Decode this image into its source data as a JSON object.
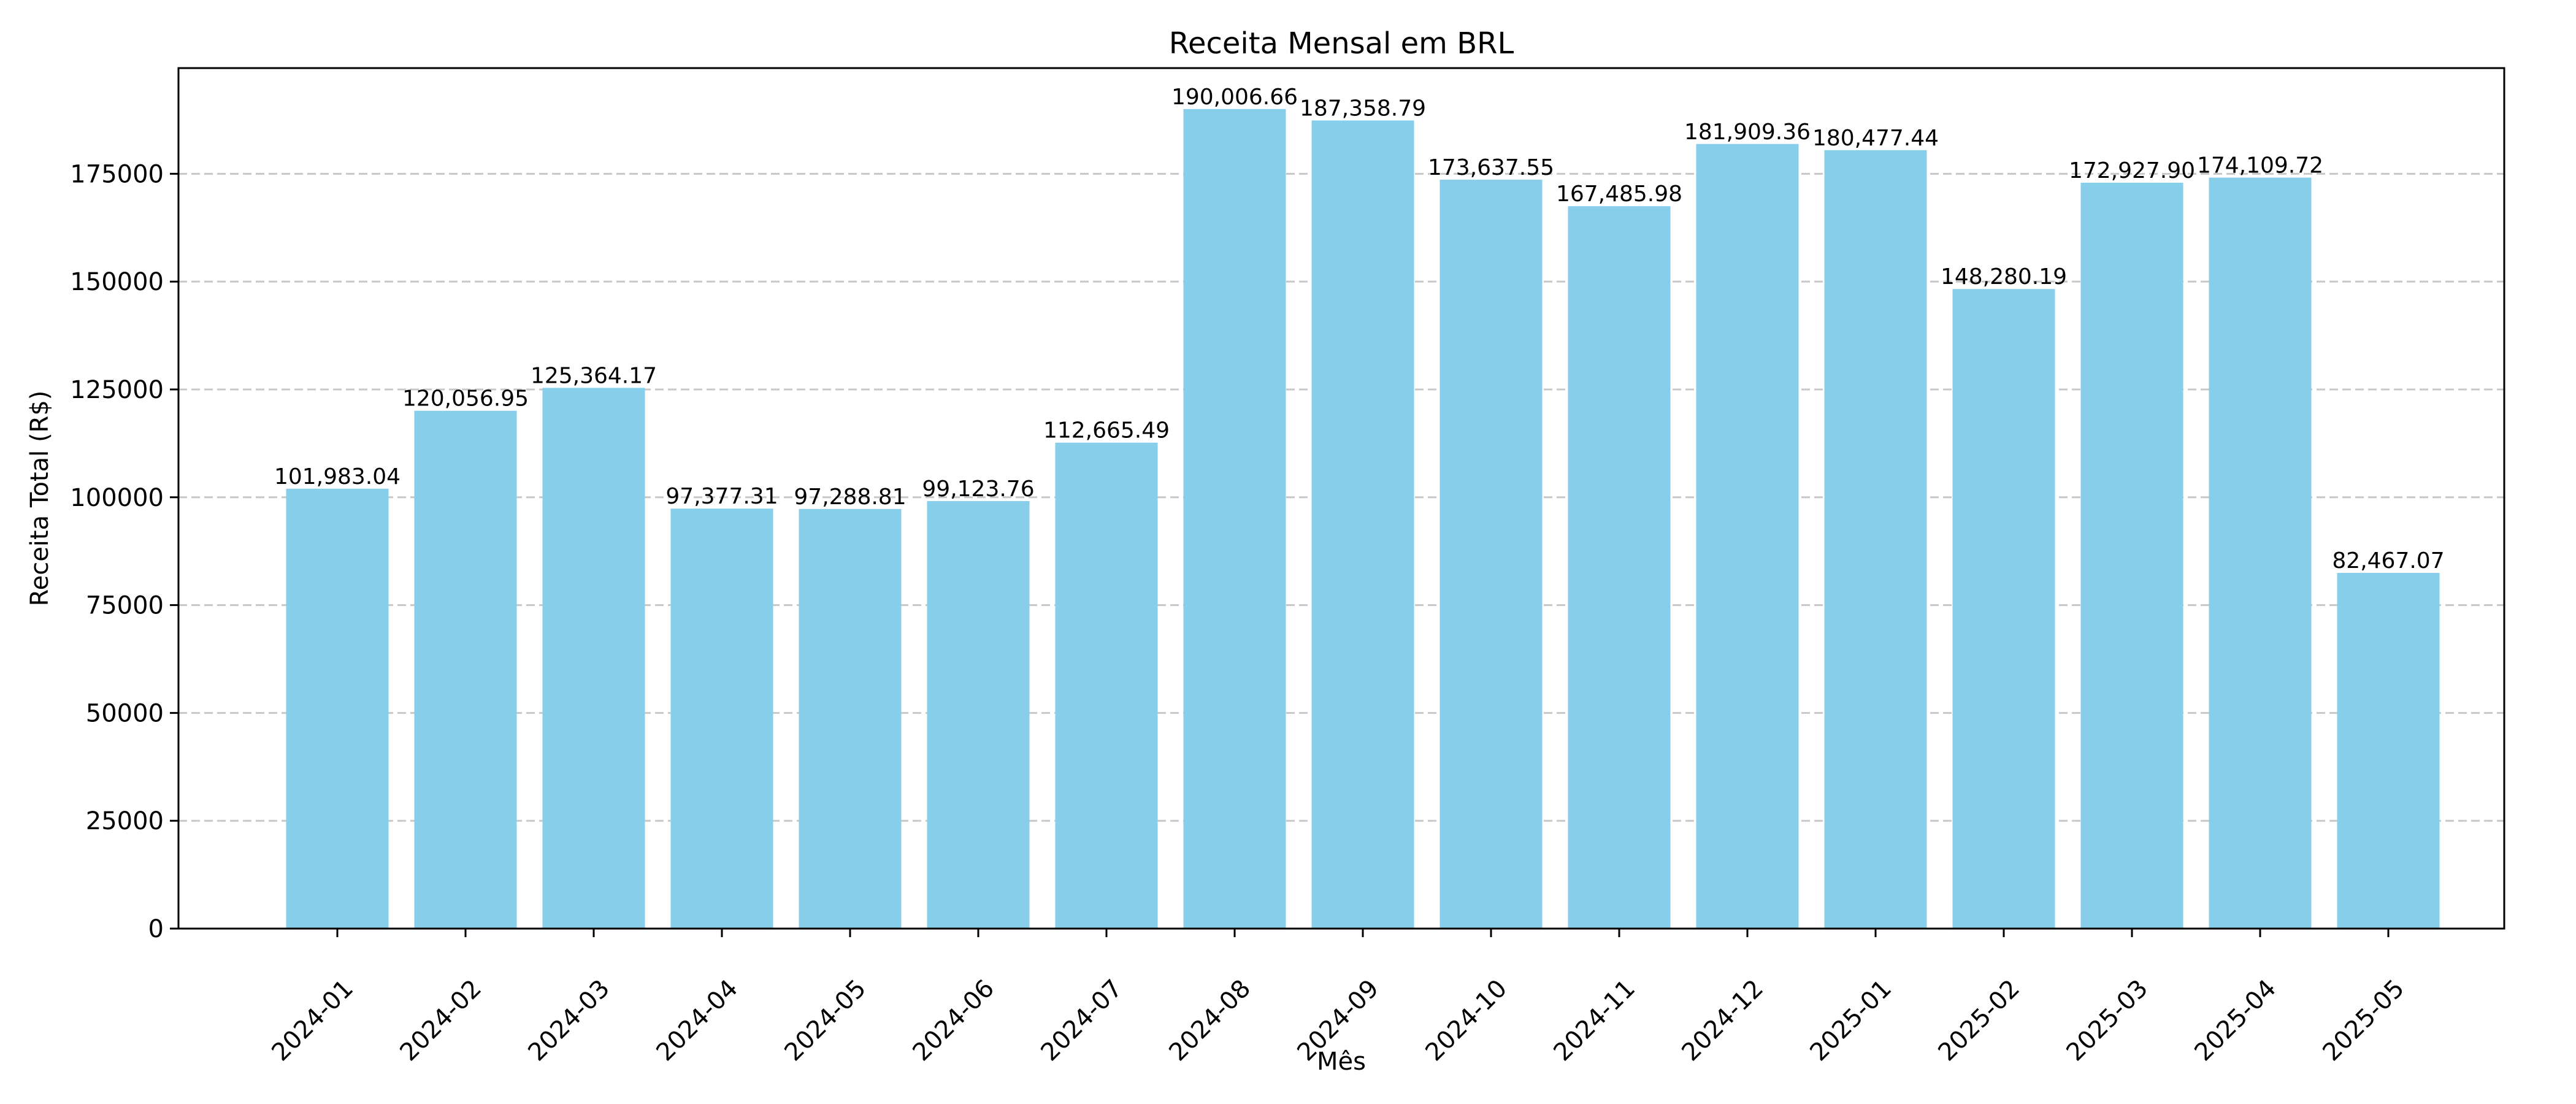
{
  "chart_data": {
    "type": "bar",
    "title": "Receita Mensal em BRL",
    "xlabel": "Mês",
    "ylabel": "Receita Total (R$)",
    "categories": [
      "2024-01",
      "2024-02",
      "2024-03",
      "2024-04",
      "2024-05",
      "2024-06",
      "2024-07",
      "2024-08",
      "2024-09",
      "2024-10",
      "2024-11",
      "2024-12",
      "2025-01",
      "2025-02",
      "2025-03",
      "2025-04",
      "2025-05"
    ],
    "values": [
      101983.04,
      120056.95,
      125364.17,
      97377.31,
      97288.81,
      99123.76,
      112665.49,
      190006.66,
      187358.79,
      173637.55,
      167485.98,
      181909.36,
      180477.44,
      148280.19,
      172927.9,
      174109.72,
      82467.07
    ],
    "value_labels": [
      "101,983.04",
      "120,056.95",
      "125,364.17",
      "97,377.31",
      "97,288.81",
      "99,123.76",
      "112,665.49",
      "190,006.66",
      "187,358.79",
      "173,637.55",
      "167,485.98",
      "181,909.36",
      "180,477.44",
      "148,280.19",
      "172,927.90",
      "174,109.72",
      "82,467.07"
    ],
    "ylim": [
      0,
      199507
    ],
    "yticks": [
      0,
      25000,
      50000,
      75000,
      100000,
      125000,
      150000,
      175000
    ],
    "ytick_labels": [
      "0",
      "25000",
      "50000",
      "75000",
      "100000",
      "125000",
      "150000",
      "175000"
    ],
    "grid": "horizontal dashed",
    "bar_color": "#87ceeb",
    "grid_color": "#c8c8c8",
    "legend": "none"
  }
}
